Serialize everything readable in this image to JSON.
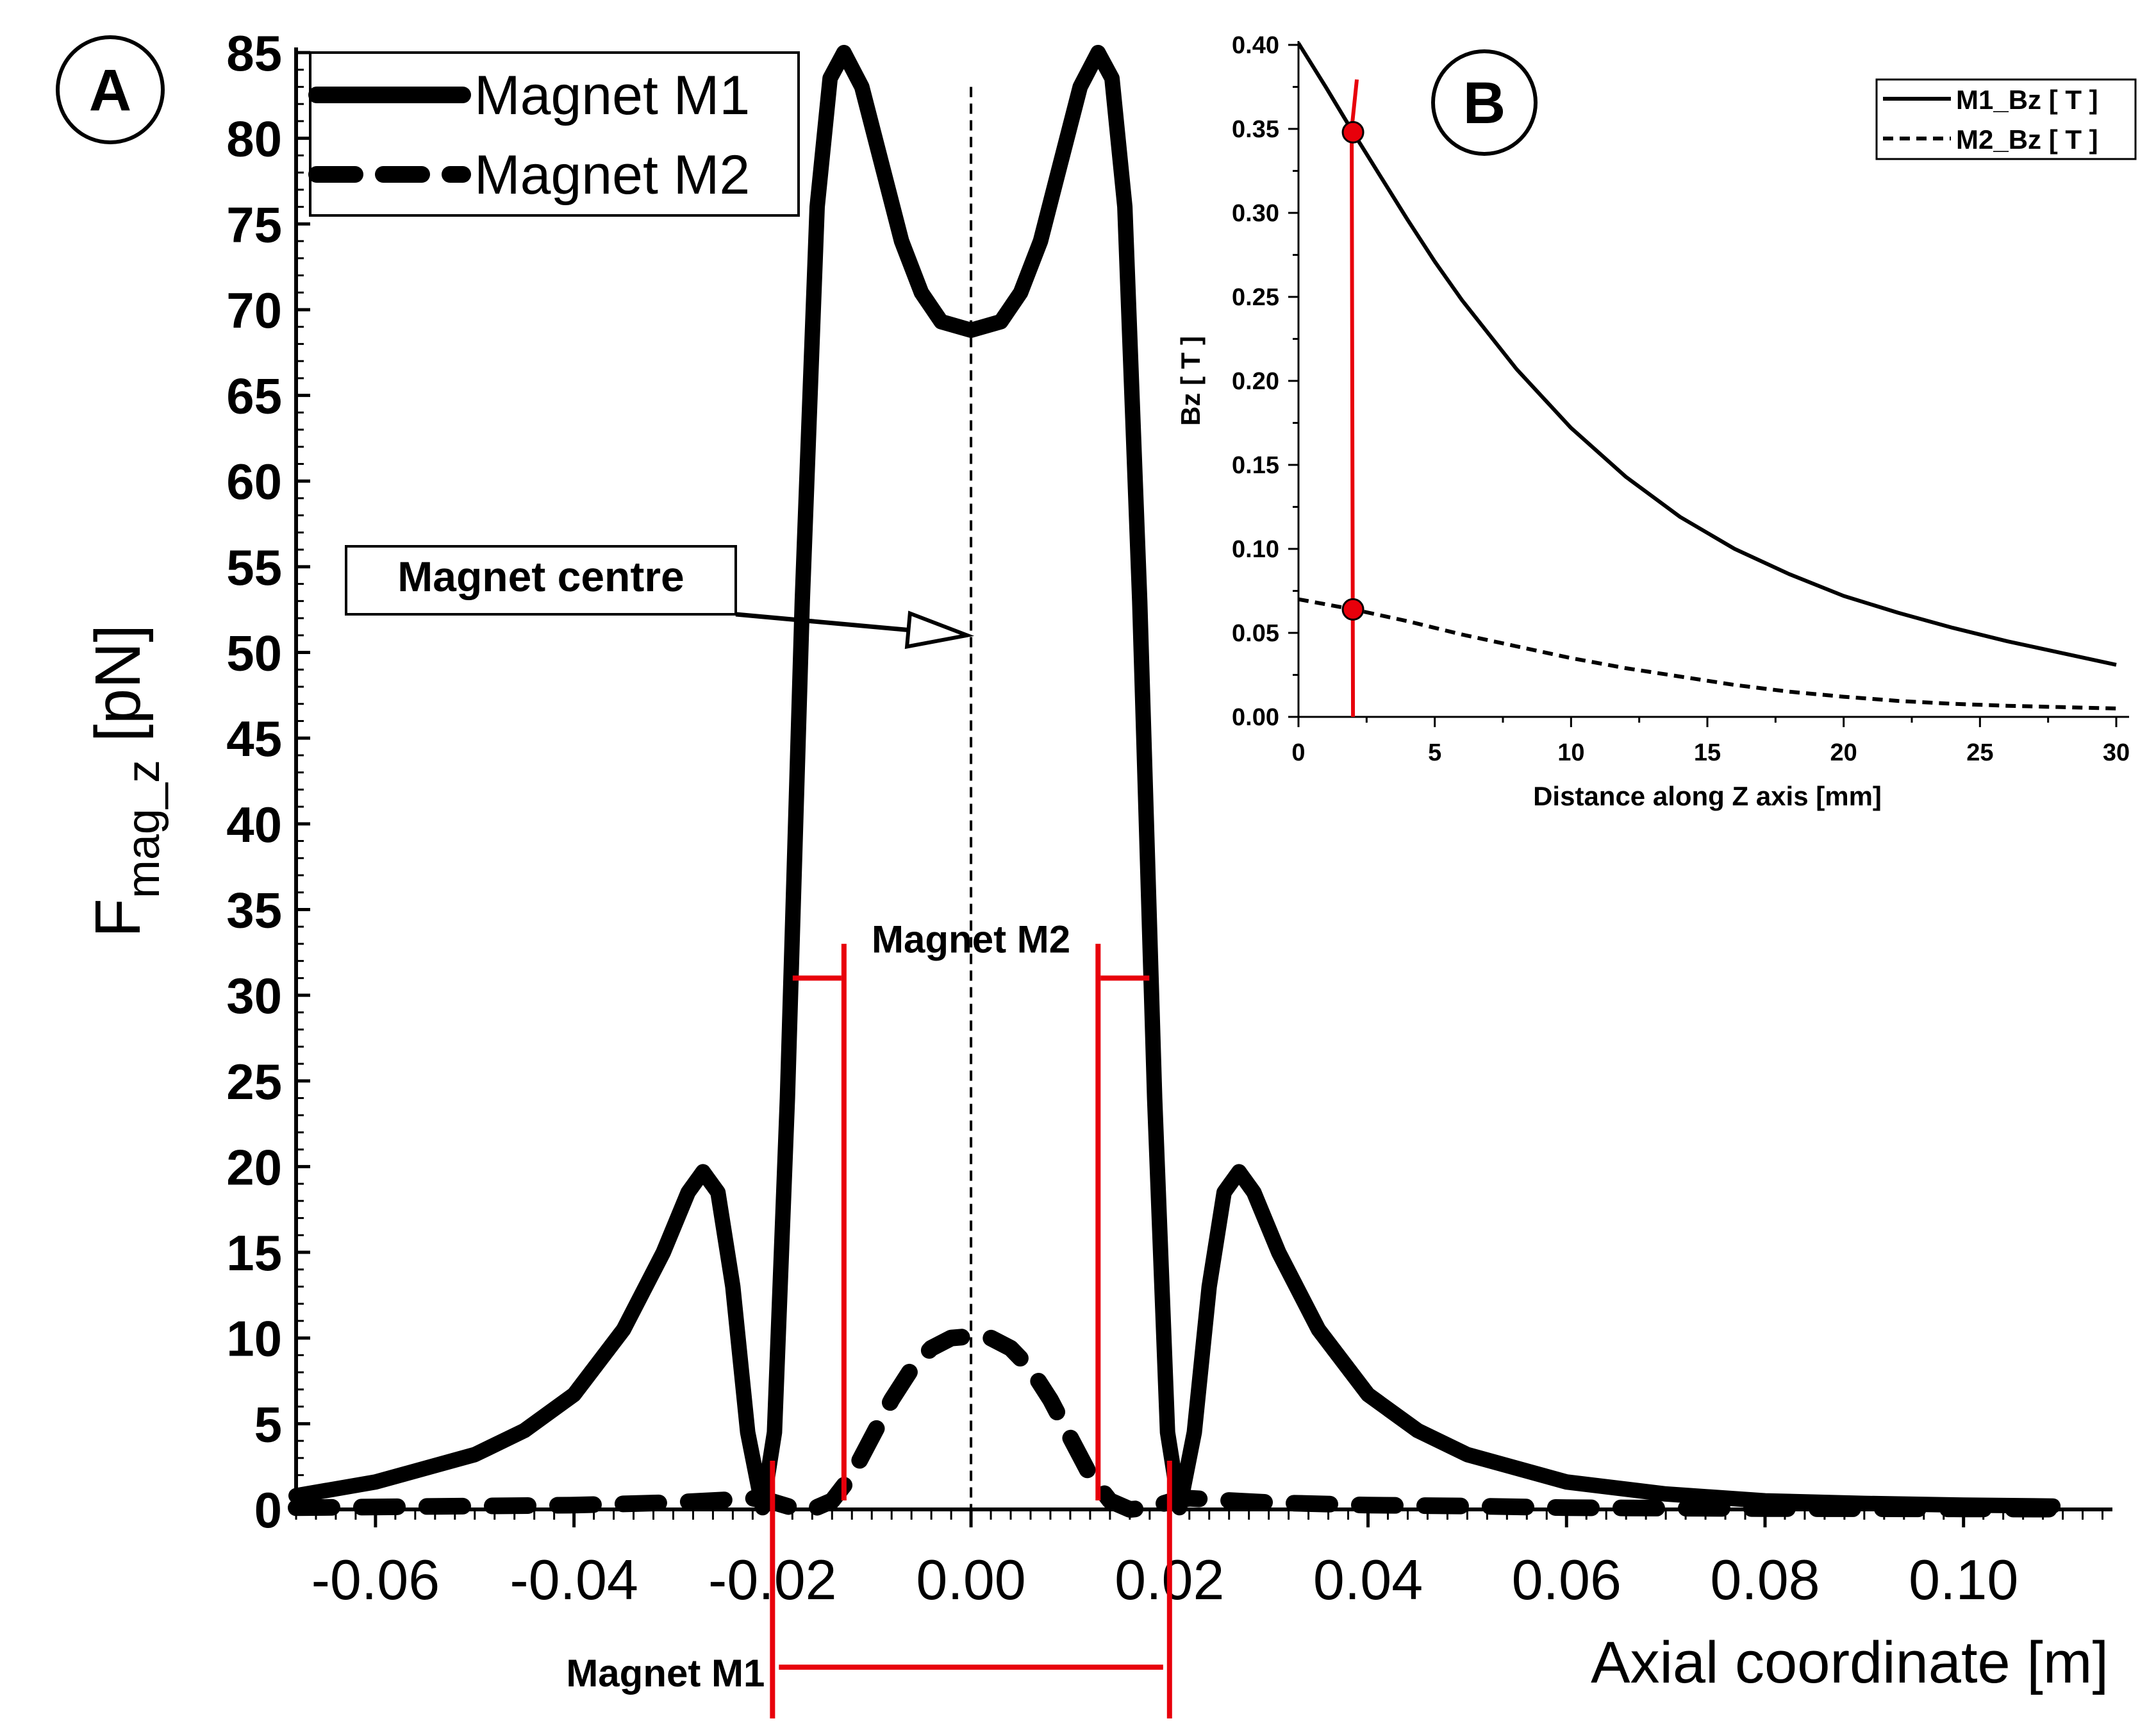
{
  "chart_data": [
    {
      "panel": "A",
      "panel_label": "A",
      "type": "line",
      "xlabel": "Axial coordinate [m]",
      "ylabel_main": "F",
      "ylabel_sub": "mag_z",
      "ylabel_unit": "[pN]",
      "xlim": [
        -0.068,
        0.115
      ],
      "ylim": [
        0,
        85
      ],
      "xticks": [
        -0.06,
        -0.04,
        -0.02,
        0.0,
        0.02,
        0.04,
        0.06,
        0.08,
        0.1
      ],
      "xtick_labels": [
        "-0.06",
        "-0.04",
        "-0.02",
        "0.00",
        "0.02",
        "0.04",
        "0.06",
        "0.08",
        "0.10"
      ],
      "yticks": [
        0,
        5,
        10,
        15,
        20,
        25,
        30,
        35,
        40,
        45,
        50,
        55,
        60,
        65,
        70,
        75,
        80,
        85
      ],
      "ytick_labels": [
        "0",
        "5",
        "10",
        "15",
        "20",
        "25",
        "30",
        "35",
        "40",
        "45",
        "50",
        "55",
        "60",
        "65",
        "70",
        "75",
        "80",
        "85"
      ],
      "legend": {
        "placement": "top-left",
        "entries": [
          "Magnet M1",
          "Magnet M2"
        ]
      },
      "series": [
        {
          "name": "Magnet M1",
          "style": "solid",
          "x": [
            -0.068,
            -0.06,
            -0.05,
            -0.045,
            -0.04,
            -0.035,
            -0.031,
            -0.0285,
            -0.027,
            -0.0255,
            -0.024,
            -0.0225,
            -0.021,
            -0.0198,
            -0.0185,
            -0.017,
            -0.0155,
            -0.0142,
            -0.0128,
            -0.011,
            -0.009,
            -0.007,
            -0.005,
            -0.003,
            0.0,
            0.003,
            0.005,
            0.007,
            0.009,
            0.011,
            0.0128,
            0.0142,
            0.0155,
            0.017,
            0.0185,
            0.0198,
            0.021,
            0.0225,
            0.024,
            0.0255,
            0.027,
            0.0285,
            0.031,
            0.035,
            0.04,
            0.045,
            0.05,
            0.06,
            0.07,
            0.08,
            0.09,
            0.1,
            0.109
          ],
          "y": [
            0.8,
            1.6,
            3.2,
            4.6,
            6.7,
            10.5,
            15.0,
            18.5,
            19.7,
            18.5,
            13.0,
            4.5,
            0.1,
            4.5,
            24.0,
            53.0,
            76.0,
            83.5,
            85.0,
            83.0,
            78.5,
            74.0,
            71.0,
            69.3,
            68.8,
            69.3,
            71.0,
            74.0,
            78.5,
            83.0,
            85.0,
            83.5,
            76.0,
            53.0,
            24.0,
            4.5,
            0.1,
            4.5,
            13.0,
            18.5,
            19.7,
            18.5,
            15.0,
            10.5,
            6.7,
            4.6,
            3.2,
            1.6,
            0.9,
            0.5,
            0.35,
            0.25,
            0.2
          ]
        },
        {
          "name": "Magnet M2",
          "style": "dashed",
          "x": [
            -0.068,
            -0.05,
            -0.04,
            -0.03,
            -0.025,
            -0.022,
            -0.02,
            -0.018,
            -0.016,
            -0.014,
            -0.012,
            -0.01,
            -0.008,
            -0.006,
            -0.004,
            -0.002,
            0.0,
            0.002,
            0.004,
            0.006,
            0.008,
            0.01,
            0.012,
            0.014,
            0.016,
            0.018,
            0.02,
            0.022,
            0.025,
            0.03,
            0.04,
            0.05,
            0.06,
            0.08,
            0.1,
            0.109
          ],
          "y": [
            0.1,
            0.2,
            0.25,
            0.4,
            0.55,
            0.65,
            0.45,
            0.1,
            0.0,
            0.5,
            2.0,
            4.2,
            6.4,
            8.2,
            9.4,
            10.0,
            10.1,
            10.0,
            9.4,
            8.2,
            6.4,
            4.2,
            2.0,
            0.5,
            0.0,
            0.1,
            0.45,
            0.65,
            0.55,
            0.4,
            0.25,
            0.2,
            0.1,
            0.05,
            0.03,
            0.02
          ]
        }
      ],
      "annotations": {
        "magnet_centre": "Magnet centre",
        "magnet_m2": "Magnet M2",
        "magnet_m1": "Magnet M1",
        "magnet_m2_extent": [
          -0.0128,
          0.0128
        ],
        "magnet_m1_extent": [
          -0.02,
          0.02
        ],
        "centre_line_x": 0.0,
        "centre_arrow_target_y": 51,
        "centre_line_top_y": 83,
        "m2_bracket_y": 31
      },
      "colors": {
        "curve": "#000000",
        "annotation": "#e8000b"
      }
    },
    {
      "panel": "B",
      "panel_label": "B",
      "type": "line",
      "xlabel": "Distance along Z axis [mm]",
      "ylabel": "Bz [ T ]",
      "xlim": [
        0,
        30
      ],
      "ylim": [
        0,
        0.4
      ],
      "xticks": [
        0,
        5,
        10,
        15,
        20,
        25,
        30
      ],
      "xtick_labels": [
        "0",
        "5",
        "10",
        "15",
        "20",
        "25",
        "30"
      ],
      "yticks": [
        0,
        0.05,
        0.1,
        0.15,
        0.2,
        0.25,
        0.3,
        0.35,
        0.4
      ],
      "ytick_labels": [
        "0.00",
        "0.05",
        "0.10",
        "0.15",
        "0.20",
        "0.25",
        "0.30",
        "0.35",
        "0.40"
      ],
      "legend": {
        "placement": "top-right",
        "entries": [
          "M1_Bz [ T ]",
          "M2_Bz [ T ]"
        ]
      },
      "series": [
        {
          "name": "M1_Bz [ T ]",
          "style": "solid",
          "x": [
            0,
            1,
            2,
            3,
            4,
            5,
            6,
            8,
            10,
            12,
            14,
            16,
            18,
            20,
            22,
            24,
            26,
            28,
            30
          ],
          "y": [
            0.401,
            0.375,
            0.348,
            0.322,
            0.296,
            0.271,
            0.248,
            0.207,
            0.172,
            0.143,
            0.119,
            0.1,
            0.085,
            0.072,
            0.062,
            0.053,
            0.045,
            0.038,
            0.031
          ]
        },
        {
          "name": "M2_Bz [ T ]",
          "style": "dashed",
          "x": [
            0,
            2,
            4,
            6,
            8,
            10,
            12,
            14,
            16,
            18,
            20,
            22,
            24,
            26,
            28,
            30
          ],
          "y": [
            0.07,
            0.064,
            0.057,
            0.049,
            0.042,
            0.035,
            0.029,
            0.024,
            0.019,
            0.015,
            0.012,
            0.0095,
            0.0078,
            0.0066,
            0.0058,
            0.005
          ]
        }
      ],
      "marker_line_x": 2,
      "markers": [
        {
          "x": 2,
          "y": 0.348
        },
        {
          "x": 2,
          "y": 0.064
        }
      ],
      "colors": {
        "curve": "#000000",
        "annotation": "#e8000b"
      }
    }
  ]
}
